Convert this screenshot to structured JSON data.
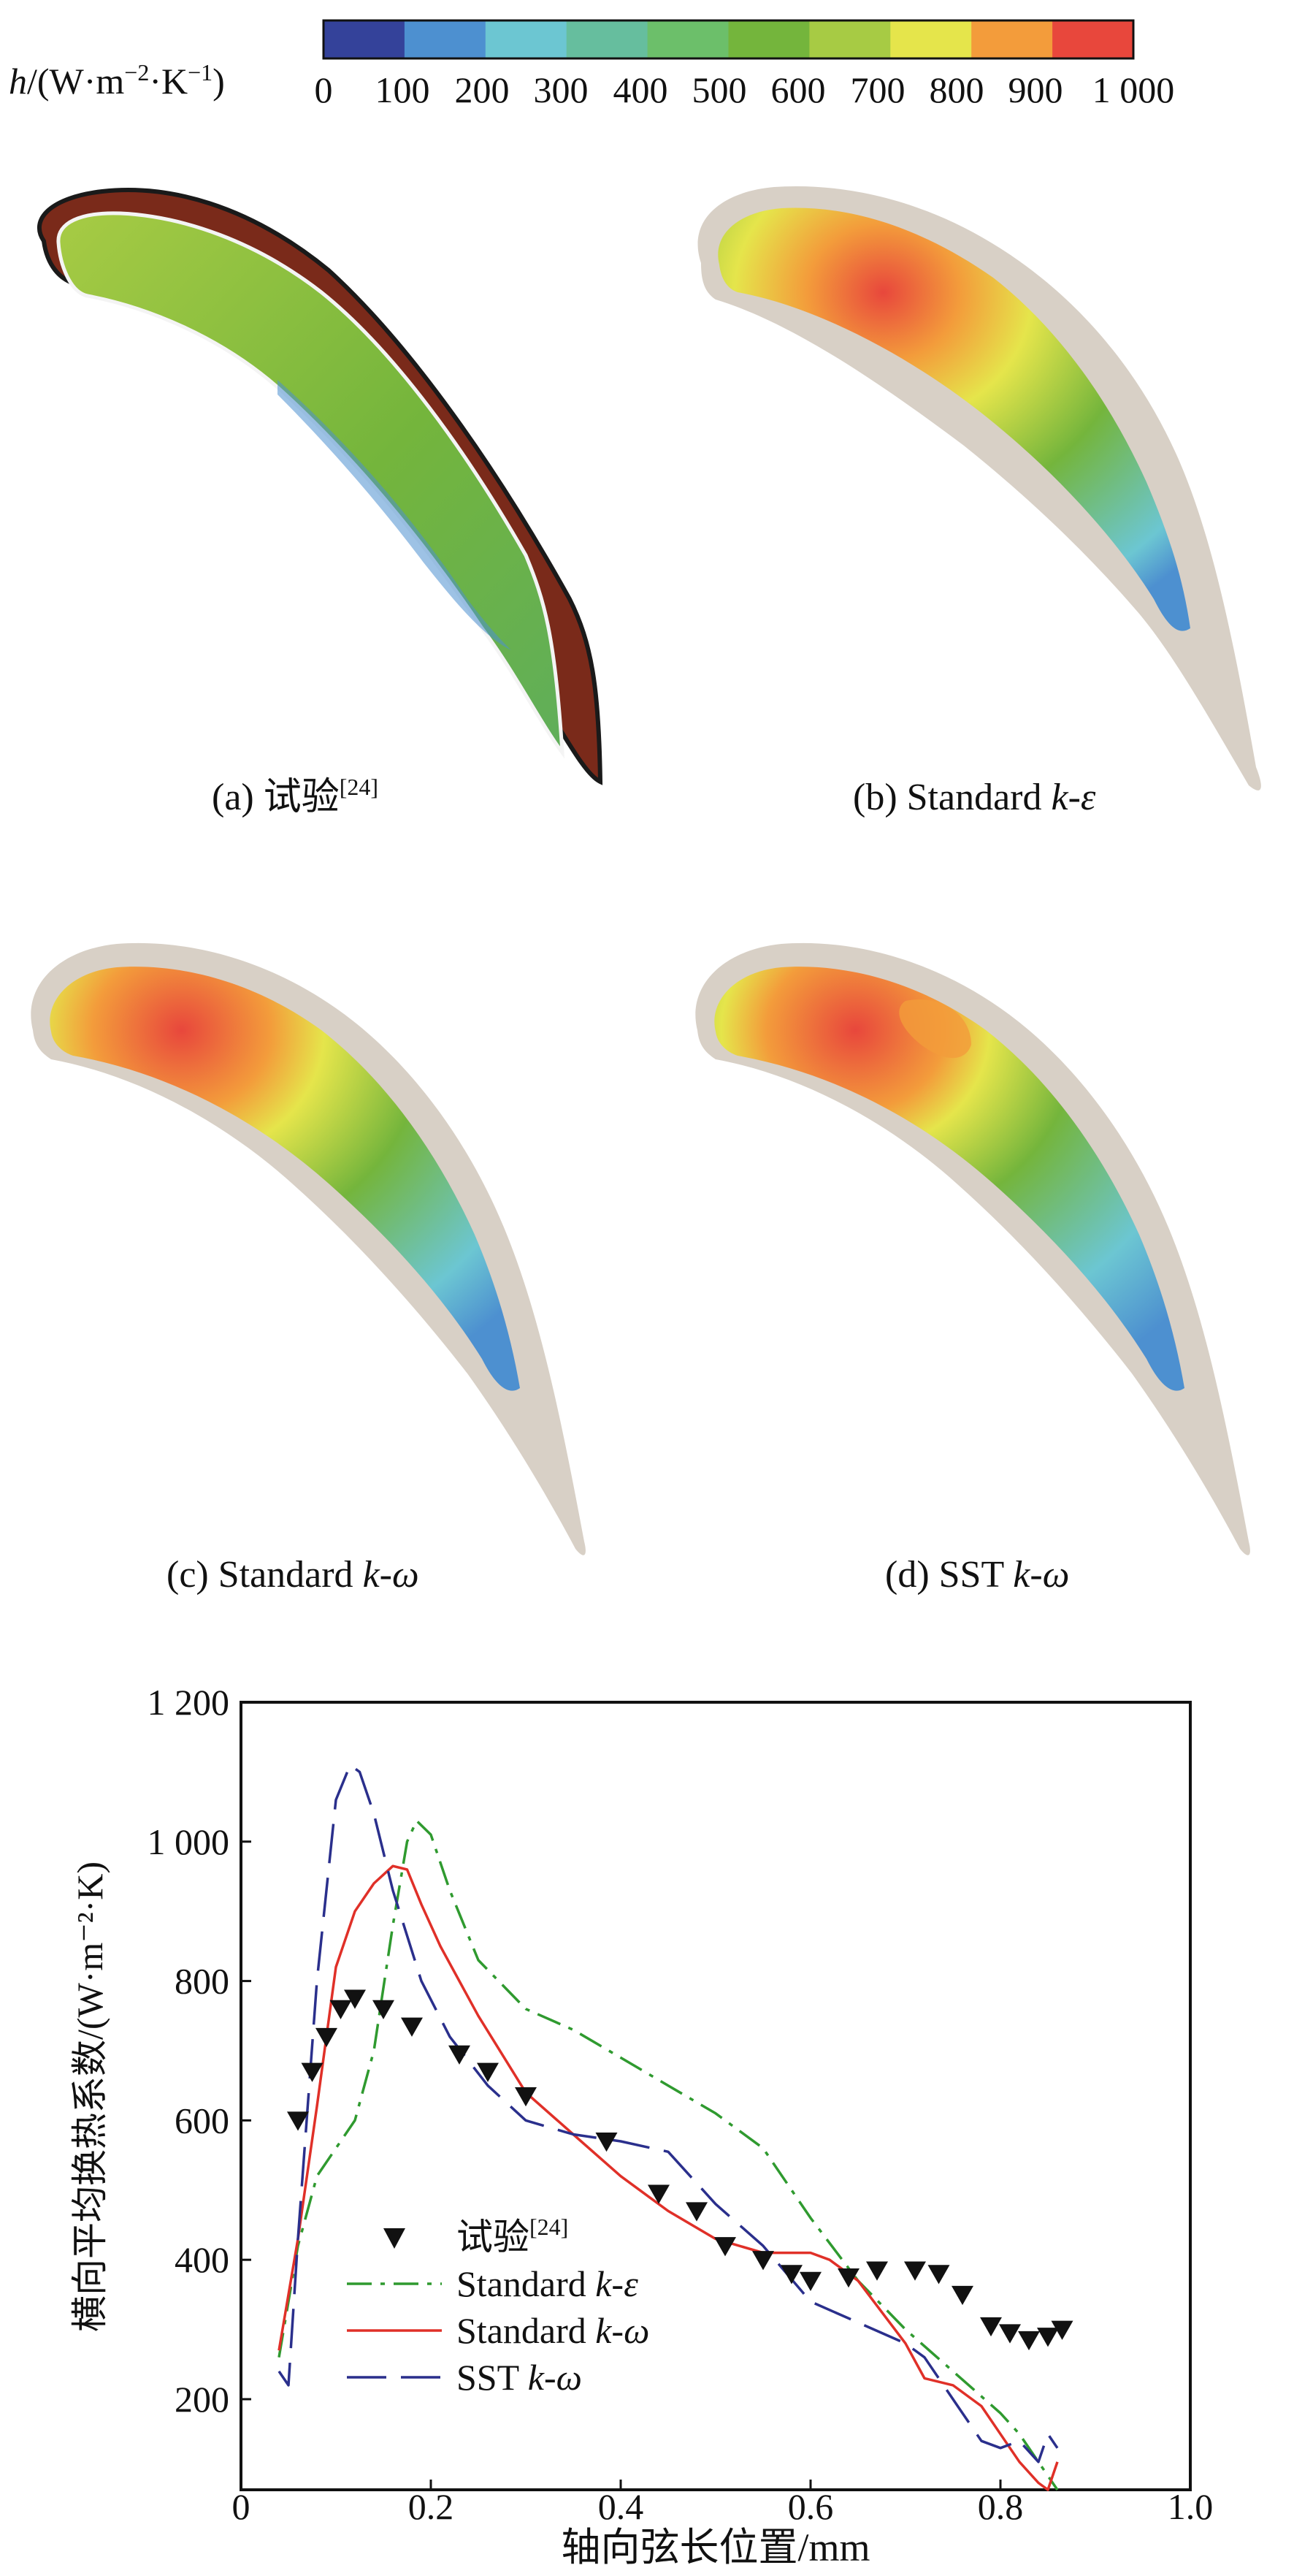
{
  "colorbar": {
    "label_prefix": "h",
    "label_rest": "/(W·m",
    "label_sup1": "−2",
    "label_mid": "·K",
    "label_sup2": "−1",
    "label_end": ")",
    "ticks": [
      "0",
      "100",
      "200",
      "300",
      "400",
      "500",
      "600",
      "700",
      "800",
      "900",
      "1 000"
    ],
    "colors": [
      "#34429a",
      "#4d90d0",
      "#6cc6d2",
      "#66be9e",
      "#6cbf6a",
      "#74b53c",
      "#a7cb44",
      "#e5e54b",
      "#f39c3b",
      "#e8473c"
    ]
  },
  "panels": [
    {
      "id": "a",
      "caption_pre": "(a) 试验",
      "caption_sup": "[24]",
      "caption_italic": "",
      "caption_post": ""
    },
    {
      "id": "b",
      "caption_pre": "(b) Standard ",
      "caption_sup": "",
      "caption_italic": "k-ε",
      "caption_post": ""
    },
    {
      "id": "c",
      "caption_pre": "(c) Standard ",
      "caption_sup": "",
      "caption_italic": "k-ω",
      "caption_post": ""
    },
    {
      "id": "d",
      "caption_pre": "(d) SST ",
      "caption_sup": "",
      "caption_italic": "k-ω",
      "caption_post": ""
    }
  ],
  "chart_data": {
    "type": "line",
    "xlabel": "轴向弦长位置/mm",
    "ylabel": "横向平均换热系数/(W·m⁻²·K)",
    "xlim": [
      0,
      1.0
    ],
    "ylim": [
      70,
      1200
    ],
    "xticks": [
      0,
      0.2,
      0.4,
      0.6,
      0.8,
      1.0
    ],
    "xtick_labels": [
      "0",
      "0.2",
      "0.4",
      "0.6",
      "0.8",
      "1.0"
    ],
    "yticks": [
      200,
      400,
      600,
      800,
      1000,
      1200
    ],
    "ytick_labels": [
      "200",
      "400",
      "600",
      "800",
      "1 000",
      "1 200"
    ],
    "grid": false,
    "legend_position": "lower-left",
    "series": [
      {
        "name_pre": "试验",
        "name_sup": "[24]",
        "name_italic": "",
        "style": "triangle-markers",
        "color": "#111111",
        "x": [
          0.06,
          0.075,
          0.09,
          0.105,
          0.12,
          0.15,
          0.18,
          0.23,
          0.26,
          0.3,
          0.385,
          0.44,
          0.48,
          0.51,
          0.55,
          0.58,
          0.6,
          0.64,
          0.67,
          0.71,
          0.735,
          0.76,
          0.79,
          0.81,
          0.83,
          0.85,
          0.865
        ],
        "y": [
          600,
          670,
          720,
          760,
          775,
          760,
          735,
          695,
          670,
          635,
          570,
          495,
          470,
          420,
          400,
          380,
          370,
          375,
          385,
          385,
          380,
          350,
          305,
          295,
          285,
          290,
          300
        ]
      },
      {
        "name_pre": "Standard ",
        "name_sup": "",
        "name_italic": "k-ε",
        "style": "dash-dot",
        "color": "#2f9a2f",
        "x": [
          0.04,
          0.06,
          0.08,
          0.1,
          0.12,
          0.14,
          0.16,
          0.175,
          0.185,
          0.2,
          0.22,
          0.25,
          0.3,
          0.35,
          0.4,
          0.45,
          0.5,
          0.55,
          0.6,
          0.65,
          0.7,
          0.75,
          0.8,
          0.82,
          0.84,
          0.86
        ],
        "y": [
          260,
          420,
          520,
          560,
          600,
          700,
          880,
          1000,
          1030,
          1010,
          930,
          830,
          760,
          730,
          690,
          650,
          610,
          560,
          460,
          370,
          300,
          240,
          180,
          150,
          110,
          70
        ]
      },
      {
        "name_pre": "Standard ",
        "name_sup": "",
        "name_italic": "k-ω",
        "style": "solid",
        "color": "#e03028",
        "x": [
          0.04,
          0.06,
          0.08,
          0.1,
          0.12,
          0.14,
          0.16,
          0.175,
          0.19,
          0.21,
          0.25,
          0.3,
          0.35,
          0.4,
          0.45,
          0.5,
          0.55,
          0.6,
          0.62,
          0.65,
          0.7,
          0.72,
          0.75,
          0.78,
          0.8,
          0.82,
          0.84,
          0.85,
          0.86
        ],
        "y": [
          270,
          430,
          620,
          820,
          900,
          940,
          965,
          960,
          910,
          850,
          750,
          640,
          580,
          520,
          470,
          430,
          410,
          410,
          400,
          370,
          280,
          230,
          220,
          190,
          150,
          110,
          80,
          70,
          110
        ]
      },
      {
        "name_pre": "SST ",
        "name_sup": "",
        "name_italic": "k-ω",
        "style": "long-dash",
        "color": "#2a2f8c",
        "x": [
          0.04,
          0.05,
          0.06,
          0.08,
          0.1,
          0.115,
          0.125,
          0.14,
          0.16,
          0.19,
          0.22,
          0.26,
          0.3,
          0.35,
          0.4,
          0.45,
          0.5,
          0.55,
          0.6,
          0.65,
          0.7,
          0.72,
          0.75,
          0.78,
          0.8,
          0.82,
          0.84,
          0.85,
          0.86
        ],
        "y": [
          240,
          220,
          430,
          800,
          1060,
          1110,
          1100,
          1040,
          930,
          800,
          720,
          650,
          600,
          580,
          570,
          555,
          480,
          420,
          340,
          310,
          280,
          260,
          200,
          140,
          130,
          140,
          110,
          150,
          130
        ]
      }
    ]
  }
}
